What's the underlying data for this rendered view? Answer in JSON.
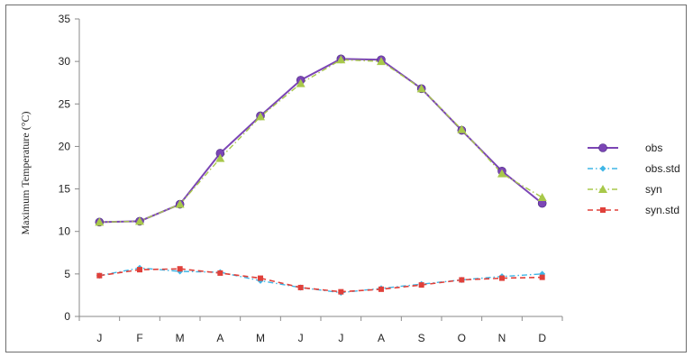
{
  "chart_data": {
    "type": "line",
    "categories": [
      "J",
      "F",
      "M",
      "A",
      "M",
      "J",
      "J",
      "A",
      "S",
      "O",
      "N",
      "D"
    ],
    "ylabel": "Maximum Temperature (°C)",
    "xlabel": "",
    "ylim": [
      0,
      35
    ],
    "yticks": [
      0,
      5,
      10,
      15,
      20,
      25,
      30,
      35
    ],
    "grid": false,
    "legend_position": "right",
    "series": [
      {
        "name": "obs",
        "color": "#7b45b5",
        "marker": "circle",
        "dash": "solid",
        "values": [
          11.1,
          11.2,
          13.2,
          19.2,
          23.6,
          27.8,
          30.3,
          30.2,
          26.8,
          21.9,
          17.1,
          13.3
        ]
      },
      {
        "name": "obs.std",
        "color": "#3fb6e6",
        "marker": "diamond",
        "dash": "dashdot",
        "values": [
          4.8,
          5.7,
          5.3,
          5.2,
          4.2,
          3.4,
          2.8,
          3.3,
          3.8,
          4.3,
          4.7,
          5.0
        ]
      },
      {
        "name": "syn",
        "color": "#a8c84a",
        "marker": "triangle",
        "dash": "dashdot",
        "values": [
          11.1,
          11.2,
          13.2,
          18.6,
          23.5,
          27.4,
          30.2,
          30.0,
          26.8,
          22.0,
          16.8,
          14.0
        ]
      },
      {
        "name": "syn.std",
        "color": "#e0403a",
        "marker": "square",
        "dash": "dashed",
        "values": [
          4.8,
          5.5,
          5.6,
          5.1,
          4.5,
          3.4,
          2.9,
          3.2,
          3.7,
          4.3,
          4.5,
          4.6
        ]
      }
    ]
  }
}
